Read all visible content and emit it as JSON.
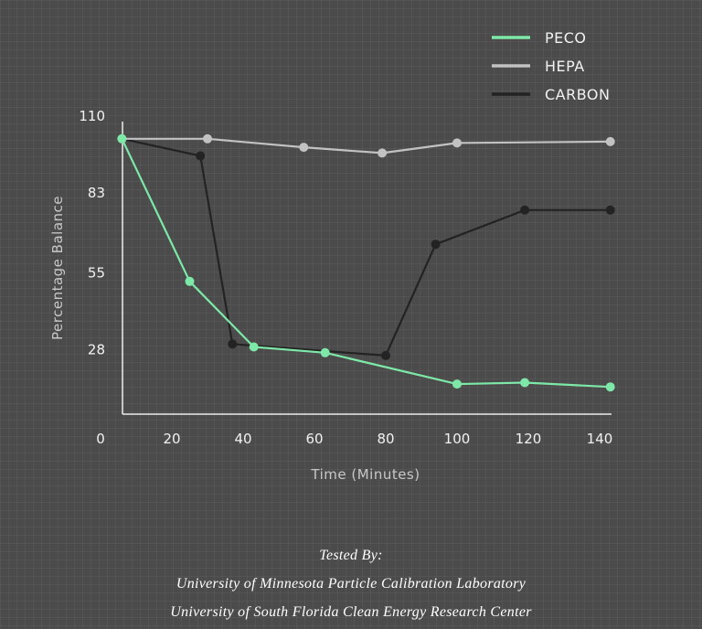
{
  "chart_data": {
    "type": "line",
    "xlabel": "Time (Minutes)",
    "ylabel": "Percentage Balance",
    "xlim": [
      0,
      140
    ],
    "ylim": [
      0,
      110
    ],
    "x_ticks": [
      0,
      20,
      40,
      60,
      80,
      100,
      120,
      140
    ],
    "y_ticks": [
      28,
      55,
      83,
      110
    ],
    "grid": false,
    "legend_position": "top-right",
    "series": [
      {
        "name": "PECO",
        "color": "#7ee8a8",
        "points": [
          [
            6,
            102
          ],
          [
            25,
            52
          ],
          [
            43,
            29
          ],
          [
            63,
            27
          ],
          [
            100,
            16
          ],
          [
            119,
            16.5
          ],
          [
            143,
            15
          ]
        ]
      },
      {
        "name": "HEPA",
        "color": "#c2c2c2",
        "points": [
          [
            6,
            102
          ],
          [
            30,
            102
          ],
          [
            57,
            99
          ],
          [
            79,
            97
          ],
          [
            100,
            100.5
          ],
          [
            143,
            101
          ]
        ]
      },
      {
        "name": "CARBON",
        "color": "#232323",
        "points": [
          [
            6,
            102
          ],
          [
            28,
            96
          ],
          [
            37,
            30
          ],
          [
            80,
            26
          ],
          [
            94,
            65
          ],
          [
            119,
            77
          ],
          [
            143,
            77
          ]
        ]
      }
    ]
  },
  "credits": {
    "heading": "Tested By:",
    "line1": "University of Minnesota Particle Calibration Laboratory",
    "line2": "University of South Florida Clean Energy Research Center"
  }
}
